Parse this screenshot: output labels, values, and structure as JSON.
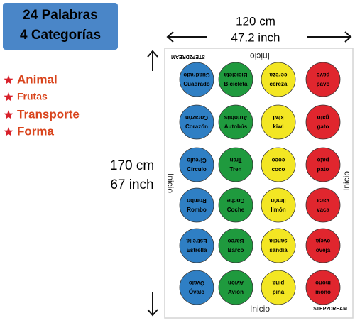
{
  "badge": {
    "lines": [
      "24 Palabras",
      "4 Categorías"
    ]
  },
  "categories": [
    "Animal",
    "Frutas",
    "Transporte",
    "Forma"
  ],
  "dimensions": {
    "width": [
      "120 cm",
      "47.2 inch"
    ],
    "height": [
      "170 cm",
      "67 inch"
    ]
  },
  "mat": {
    "edge_label": "Inicio",
    "brand": "STEP2DREAM",
    "column_colors": [
      "#2f7fc4",
      "#1f9a3e",
      "#f3e623",
      "#e0262e"
    ],
    "rows": [
      [
        "Cuadrado",
        "Bicicleta",
        "cereza",
        "pavo"
      ],
      [
        "Corazón",
        "Autobús",
        "kiwi",
        "gato"
      ],
      [
        "Círculo",
        "Tren",
        "coco",
        "pato"
      ],
      [
        "Rombo",
        "Coche",
        "limón",
        "vaca"
      ],
      [
        "Estrella",
        "Barco",
        "sandía",
        "oveja"
      ],
      [
        "Óvalo",
        "Avión",
        "piña",
        "mono"
      ]
    ]
  }
}
